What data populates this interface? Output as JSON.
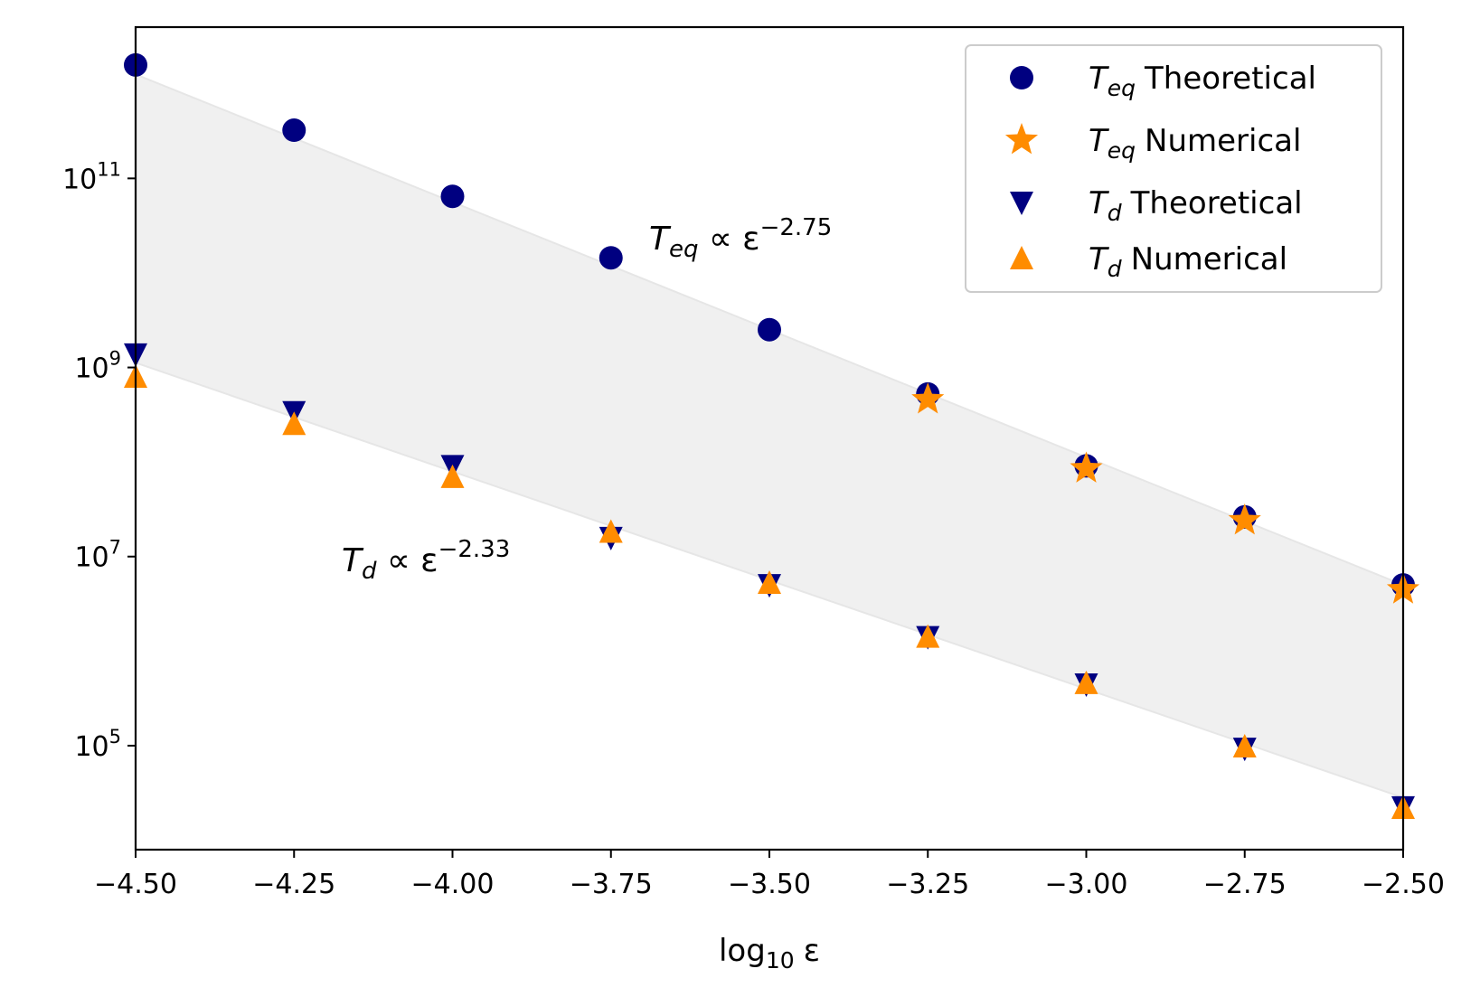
{
  "chart_data": {
    "type": "scatter",
    "title": "",
    "xlabel": "log",
    "xlabel_sub": "10",
    "xlabel_symbol": "ε",
    "ylabel": "",
    "xlim": [
      -4.5,
      -2.5
    ],
    "ylim_log10": [
      3.9,
      12.6
    ],
    "yscale": "log",
    "x_ticks": [
      -4.5,
      -4.25,
      -4.0,
      -3.75,
      -3.5,
      -3.25,
      -3.0,
      -2.75,
      -2.5
    ],
    "x_tick_labels": [
      "−4.50",
      "−4.25",
      "−4.00",
      "−3.75",
      "−3.50",
      "−3.25",
      "−3.00",
      "−2.75",
      "−2.50"
    ],
    "y_ticks_log10": [
      5,
      7,
      9,
      11
    ],
    "y_tick_labels": [
      {
        "base": "10",
        "exp": "5"
      },
      {
        "base": "10",
        "exp": "7"
      },
      {
        "base": "10",
        "exp": "9"
      },
      {
        "base": "10",
        "exp": "11"
      }
    ],
    "series": [
      {
        "name": "T_eq Theoretical",
        "legend_main": "T",
        "legend_sub": "eq",
        "legend_rest": "Theoretical",
        "marker": "circle",
        "color": "#000080",
        "x": [
          -4.5,
          -4.25,
          -4.0,
          -3.75,
          -3.5,
          -3.25,
          -3.0,
          -2.75,
          -2.5
        ],
        "log10_y": [
          12.2,
          11.51,
          10.81,
          10.16,
          9.4,
          8.72,
          7.96,
          7.42,
          6.7
        ]
      },
      {
        "name": "T_eq Numerical",
        "legend_main": "T",
        "legend_sub": "eq",
        "legend_rest": "Numerical",
        "marker": "star",
        "color": "#ff8c00",
        "x": [
          -3.25,
          -3.0,
          -2.75,
          -2.5
        ],
        "log10_y": [
          8.66,
          7.93,
          7.38,
          6.65
        ]
      },
      {
        "name": "T_d Theoretical",
        "legend_main": "T",
        "legend_sub": "d",
        "legend_rest": "Theoretical",
        "marker": "triangle-down",
        "color": "#000080",
        "x": [
          -4.5,
          -4.25,
          -4.0,
          -3.75,
          -3.5,
          -3.25,
          -3.0,
          -2.75,
          -2.5
        ],
        "log10_y": [
          9.14,
          8.53,
          7.96,
          7.2,
          6.7,
          6.15,
          5.65,
          4.97,
          4.35
        ]
      },
      {
        "name": "T_d Numerical",
        "legend_main": "T",
        "legend_sub": "d",
        "legend_rest": "Numerical",
        "marker": "triangle-up",
        "color": "#ff8c00",
        "x": [
          -4.5,
          -4.25,
          -4.0,
          -3.75,
          -3.5,
          -3.25,
          -3.0,
          -2.75,
          -2.5
        ],
        "log10_y": [
          8.9,
          8.4,
          7.84,
          7.26,
          6.72,
          6.15,
          5.66,
          4.99,
          4.34
        ]
      }
    ],
    "band": {
      "color": "#e8e8e8",
      "upper_log10": [
        12.1,
        6.7
      ],
      "lower_log10": [
        9.05,
        4.45
      ],
      "x": [
        -4.5,
        -2.5
      ]
    },
    "annotations": [
      {
        "main": "T",
        "sub": "eq",
        "mid": " ∝ ε",
        "sup": "−2.75",
        "x": -3.7,
        "log10_y": 10.2
      },
      {
        "main": "T",
        "sub": "d",
        "mid": " ∝ ε",
        "sup": "−2.33",
        "x": -4.18,
        "log10_y": 6.8
      }
    ],
    "legend": {
      "location": "upper right"
    }
  }
}
